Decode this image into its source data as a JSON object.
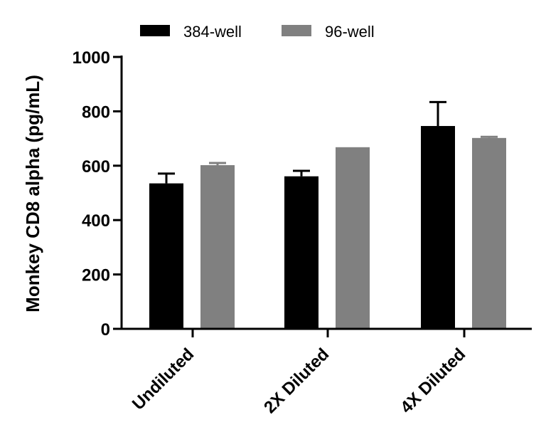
{
  "chart_data": {
    "type": "bar",
    "title": "",
    "xlabel": "",
    "ylabel": "Monkey CD8 alpha (pg/mL)",
    "ylim": [
      0,
      1000
    ],
    "yticks": [
      0,
      200,
      400,
      600,
      800,
      1000
    ],
    "categories": [
      "Undiluted",
      "2X Diluted",
      "4X Diluted"
    ],
    "series": [
      {
        "name": "384-well",
        "color": "#000000",
        "values": [
          535,
          561,
          746
        ],
        "errors": [
          36,
          20,
          88
        ]
      },
      {
        "name": "96-well",
        "color": "#808080",
        "values": [
          602,
          668,
          702
        ],
        "errors": [
          8,
          0,
          4
        ]
      }
    ],
    "legend_position": "top",
    "grid": false
  }
}
